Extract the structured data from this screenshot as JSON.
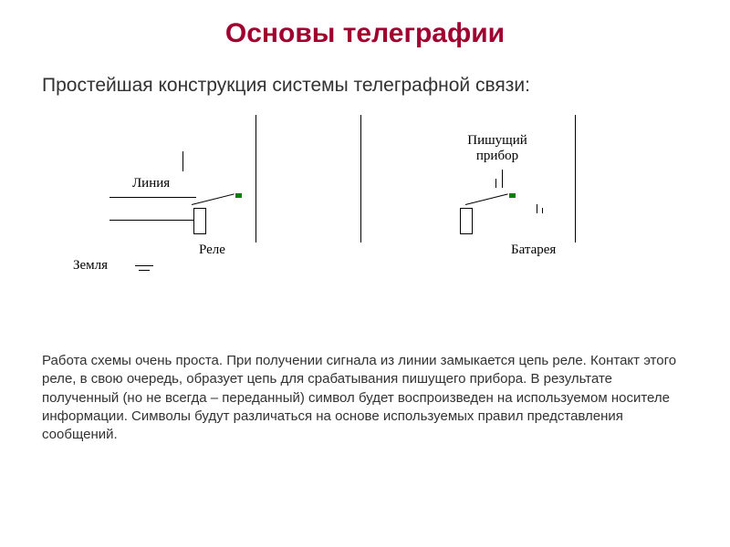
{
  "title": {
    "text": "Основы телеграфии",
    "color": "#a00030",
    "fontsize": 30
  },
  "subtitle": {
    "text": "Простейшая конструкция системы телеграфной связи:",
    "color": "#323232",
    "fontsize": 21
  },
  "diagram": {
    "line_color": "#000000",
    "accent_color": "#008000",
    "box_border": "#000000",
    "labels": {
      "line": "Линия",
      "relay": "Реле",
      "ground": "Земля",
      "recorder": "Пишущий прибор",
      "battery": "Батарея"
    },
    "label_fontsize": 15
  },
  "body": {
    "text": "Работа схемы очень проста. При получении сигнала из линии замыкается цепь реле. Контакт этого реле, в свою очередь, образует цепь для срабатывания пишущего прибора. В результате полученный (но не всегда – переданный) символ будет воспроизведен на используемом носителе информации. Символы будут различаться на основе используемых правил представления сообщений.",
    "color": "#323232",
    "fontsize": 15
  }
}
